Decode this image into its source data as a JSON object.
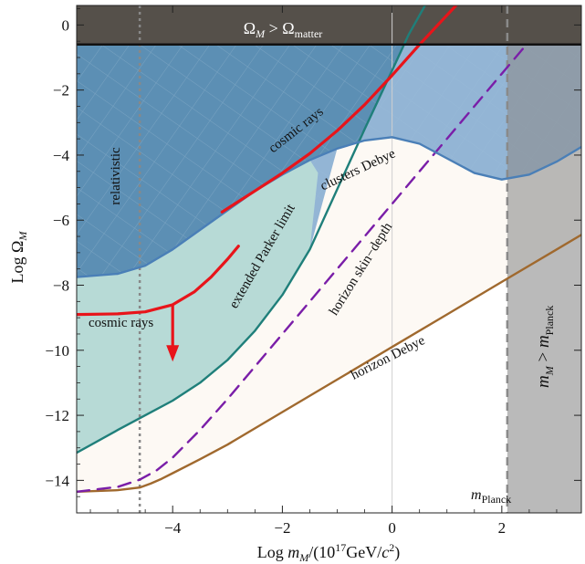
{
  "chart_data": {
    "type": "line",
    "title": "",
    "xlabel": "Log m_M/(10^17 GeV/c^2)",
    "xlabel_parts": {
      "main": "Log ",
      "m": "m",
      "M_sub": "M",
      "mid": "/(10",
      "exp": "17",
      "unit": "GeV/",
      "c": "c",
      "exp2": "2",
      "close": ")"
    },
    "ylabel": "Log Ω_M",
    "ylabel_parts": {
      "main": "Log Ω",
      "sub": "M"
    },
    "xlim": [
      -5.75,
      3.45
    ],
    "ylim": [
      -15.0,
      0.6
    ],
    "xticks": [
      -4,
      -2,
      0,
      2
    ],
    "xtick_labels": [
      "−4",
      "−2",
      "0",
      "2"
    ],
    "yticks": [
      0,
      -2,
      -4,
      -6,
      -8,
      -10,
      -12,
      -14
    ],
    "ytick_labels": [
      "0",
      "−2",
      "−4",
      "−6",
      "−8",
      "−10",
      "−12",
      "−14"
    ],
    "grid": false,
    "regions": [
      {
        "name": "Ω_M > Ω_matter",
        "y_min": -0.6,
        "color": "#55504a"
      },
      {
        "name": "m_M > m_Planck",
        "x_min": 2.1,
        "color": "#8c8c8c"
      }
    ],
    "series": [
      {
        "name": "horizon Debye",
        "color": "#a0692e",
        "style": "solid",
        "x": [
          -5.75,
          -5.0,
          -4.6,
          -4.4,
          -4.2,
          -4.0,
          -3.5,
          -3.0,
          -2.0,
          -1.0,
          0.0,
          1.0,
          2.0,
          3.0,
          3.45
        ],
        "y": [
          -14.35,
          -14.3,
          -14.22,
          -14.1,
          -13.95,
          -13.78,
          -13.35,
          -12.9,
          -11.9,
          -10.9,
          -9.9,
          -8.9,
          -7.9,
          -6.9,
          -6.45
        ]
      },
      {
        "name": "horizon skin–depth",
        "color": "#7a1ea8",
        "style": "dashed",
        "x": [
          -5.75,
          -5.0,
          -4.6,
          -4.3,
          -4.0,
          -3.5,
          -3.0,
          -2.0,
          -1.0,
          0.0,
          1.0,
          2.0,
          2.4
        ],
        "y": [
          -14.35,
          -14.2,
          -13.98,
          -13.7,
          -13.3,
          -12.45,
          -11.5,
          -9.5,
          -7.5,
          -5.5,
          -3.5,
          -1.5,
          -0.7
        ]
      },
      {
        "name": "extended Parker limit",
        "color": "#1f7f7a",
        "style": "solid",
        "x": [
          -5.75,
          -5.0,
          -4.5,
          -4.0,
          -3.5,
          -3.0,
          -2.5,
          -2.0,
          -1.5,
          -1.0,
          -0.5,
          0.0,
          0.3,
          0.6,
          0.9
        ],
        "y": [
          -13.15,
          -12.45,
          -12.0,
          -11.55,
          -11.0,
          -10.3,
          -9.4,
          -8.3,
          -6.9,
          -5.05,
          -3.2,
          -1.4,
          -0.3,
          0.6,
          1.5
        ]
      },
      {
        "name": "clusters Debye",
        "color": "#4a7fb7",
        "style": "solid",
        "x": [
          -5.75,
          -5.0,
          -4.5,
          -4.0,
          -3.5,
          -3.0,
          -2.5,
          -2.0,
          -1.5,
          -1.0,
          -0.5,
          0.0,
          0.5,
          1.0,
          1.5,
          2.0,
          2.5,
          3.0,
          3.45
        ],
        "y": [
          -7.75,
          -7.65,
          -7.4,
          -6.9,
          -6.3,
          -5.7,
          -5.1,
          -4.6,
          -4.15,
          -3.8,
          -3.55,
          -3.45,
          -3.65,
          -4.1,
          -4.55,
          -4.75,
          -4.6,
          -4.2,
          -3.75
        ]
      },
      {
        "name": "cosmic rays",
        "color": "#e8141a",
        "style": "solid",
        "x": [
          -3.1,
          -2.5,
          -2.0,
          -1.5,
          -1.0,
          -0.5,
          0.0,
          0.5,
          1.0,
          1.5
        ],
        "y": [
          -5.75,
          -5.1,
          -4.55,
          -3.95,
          -3.25,
          -2.45,
          -1.55,
          -0.6,
          0.3,
          1.2
        ]
      },
      {
        "name": "cosmic rays",
        "color": "#e8141a",
        "style": "solid",
        "x": [
          -5.75,
          -5.0,
          -4.5,
          -4.0,
          -3.6,
          -3.3,
          -3.0,
          -2.8
        ],
        "y": [
          -8.9,
          -8.88,
          -8.82,
          -8.6,
          -8.2,
          -7.75,
          -7.2,
          -6.8
        ]
      }
    ],
    "vlines": [
      {
        "name": "relativistic",
        "x": -4.6,
        "color": "#888888",
        "style": "dotted"
      },
      {
        "name": "m_Planck",
        "x": 2.1,
        "color": "#8a8a8a",
        "style": "dashed"
      },
      {
        "name": "zero",
        "x": 0.0,
        "color": "#cfcfcf",
        "style": "solid"
      }
    ],
    "hlines": [
      {
        "name": "Ω_matter",
        "y": -0.6,
        "color": "#111111",
        "style": "solid"
      }
    ],
    "arrow": {
      "x": -4.0,
      "y_from": -8.62,
      "y_to": -10.35,
      "color": "#e8141a"
    },
    "colors": {
      "outer_fill": "#5c8fb4",
      "inner_fill": "#9cbcdb",
      "teal_fill": "#b7dad6",
      "allowed_fill": "#fdf9f4"
    },
    "annotations": [
      {
        "id": "omega-matter",
        "parts": {
          "a": "Ω",
          "a_sub": "M",
          "op": " > Ω",
          "b_sub": "matter"
        }
      },
      {
        "id": "m-planck-region",
        "parts": {
          "a": "m",
          "a_sub": "M",
          "op": " > ",
          "b": "m",
          "b_sub": "Planck"
        }
      },
      {
        "id": "m-planck-line",
        "parts": {
          "a": "m",
          "a_sub": "Planck"
        }
      },
      {
        "id": "relativistic",
        "text": "relativistic"
      },
      {
        "id": "cosmic-rays-upper",
        "text": "cosmic rays"
      },
      {
        "id": "cosmic-rays-lower",
        "text": "cosmic rays"
      },
      {
        "id": "clusters-debye",
        "text": "clusters Debye"
      },
      {
        "id": "extended-parker",
        "text": "extended Parker limit"
      },
      {
        "id": "horizon-skin",
        "text": "horizon skin−depth"
      },
      {
        "id": "horizon-debye",
        "text": "horizon Debye"
      }
    ]
  }
}
